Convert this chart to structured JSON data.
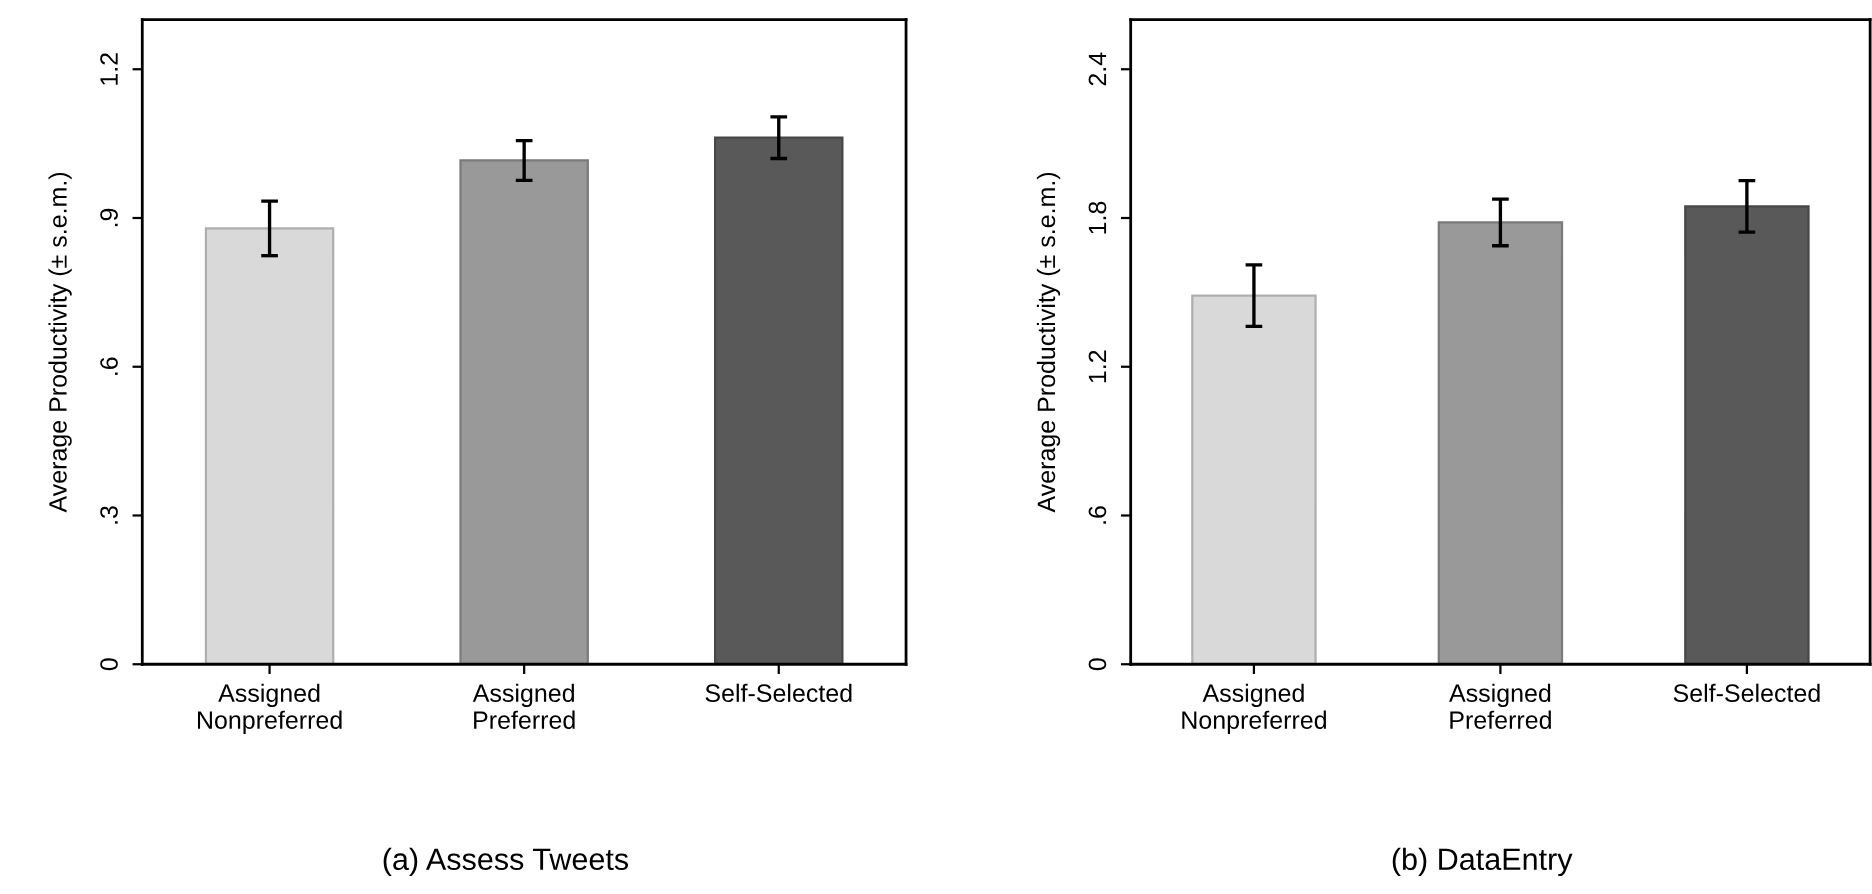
{
  "chart_data": [
    {
      "type": "bar",
      "title": "(a) Assess Tweets",
      "ylabel": "Average Productivity (± s.e.m.)",
      "categories": [
        "Assigned\nNonpreferred",
        "Assigned\nPreferred",
        "Self-Selected"
      ],
      "values": [
        0.879,
        1.016,
        1.062
      ],
      "colors": [
        "#d9d9d9",
        "#999999",
        "#595959"
      ],
      "errors": [
        0.055,
        0.04,
        0.042
      ],
      "ylim": [
        0,
        1.3
      ],
      "yticks": [
        0,
        {
          "value": 0.3,
          "label": ".3"
        },
        {
          "value": 0.6,
          "label": ".6"
        },
        {
          "value": 0.9,
          "label": ".9"
        },
        1.2
      ],
      "grid": false,
      "legend": false
    },
    {
      "type": "bar",
      "title": "(b) DataEntry",
      "ylabel": "Average Productivity (± s.e.m.)",
      "categories": [
        "Assigned\nNonpreferred",
        "Assigned\nPreferred",
        "Self-Selected"
      ],
      "values": [
        1.487,
        1.782,
        1.847
      ],
      "colors": [
        "#d9d9d9",
        "#999999",
        "#595959"
      ],
      "errors": [
        0.124,
        0.094,
        0.104
      ],
      "ylim": [
        0,
        2.6
      ],
      "yticks": [
        0,
        {
          "value": 0.6,
          "label": ".6"
        },
        1.2,
        1.8,
        2.4
      ],
      "grid": false,
      "legend": false
    }
  ]
}
